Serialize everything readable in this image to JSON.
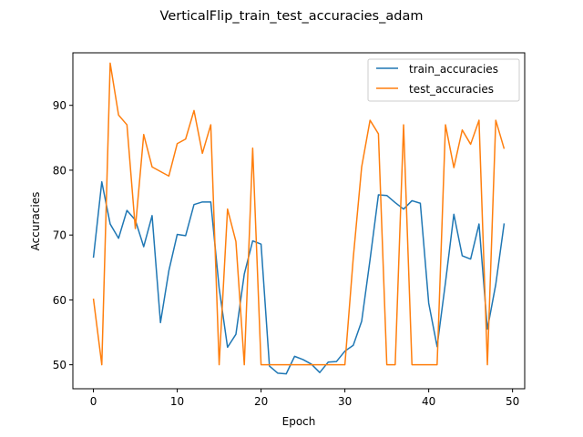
{
  "chart_data": {
    "type": "line",
    "title": "VerticalFlip_train_test_accuracies_adam",
    "xlabel": "Epoch",
    "ylabel": "Accuracies",
    "xlim": [
      -2.45,
      51.45
    ],
    "ylim": [
      46.3,
      98.1
    ],
    "xticks": [
      0,
      10,
      20,
      30,
      40,
      50
    ],
    "yticks": [
      50,
      60,
      70,
      80,
      90
    ],
    "grid": false,
    "legend_position": "top-right",
    "x": [
      0,
      1,
      2,
      3,
      4,
      5,
      6,
      7,
      8,
      9,
      10,
      11,
      12,
      13,
      14,
      15,
      16,
      17,
      18,
      19,
      20,
      21,
      22,
      23,
      24,
      25,
      26,
      27,
      28,
      29,
      30,
      31,
      32,
      33,
      34,
      35,
      36,
      37,
      38,
      39,
      40,
      41,
      42,
      43,
      44,
      45,
      46,
      47,
      48,
      49
    ],
    "series": [
      {
        "name": "train_accuracies",
        "color": "#1f77b4",
        "values": [
          66.5,
          78.2,
          71.7,
          69.5,
          73.8,
          72.3,
          68.2,
          73.0,
          56.5,
          64.5,
          70.1,
          69.9,
          74.7,
          75.1,
          75.1,
          61.8,
          52.7,
          54.7,
          64.0,
          69.1,
          68.6,
          49.8,
          48.7,
          48.6,
          51.3,
          50.8,
          50.1,
          48.8,
          50.4,
          50.5,
          52.1,
          53.0,
          56.7,
          66.2,
          76.2,
          76.1,
          75.0,
          74.0,
          75.3,
          74.9,
          59.5,
          52.8,
          62.7,
          73.2,
          66.8,
          66.3,
          71.7,
          55.5,
          62.4,
          71.8
        ]
      },
      {
        "name": "test_accuracies",
        "color": "#ff7f0e",
        "values": [
          60.2,
          50.0,
          96.5,
          88.5,
          87.0,
          71.0,
          85.5,
          80.5,
          79.8,
          79.1,
          84.1,
          84.8,
          89.2,
          82.6,
          87.0,
          50.0,
          74.0,
          69.0,
          50.0,
          83.4,
          50.0,
          50.0,
          50.0,
          50.0,
          50.0,
          50.0,
          50.0,
          50.0,
          50.0,
          50.0,
          50.0,
          66.5,
          80.5,
          87.7,
          85.6,
          50.0,
          50.0,
          87.0,
          50.0,
          50.0,
          50.0,
          50.0,
          87.0,
          80.4,
          86.2,
          84.0,
          87.7,
          50.0,
          87.7,
          83.3
        ]
      }
    ]
  }
}
